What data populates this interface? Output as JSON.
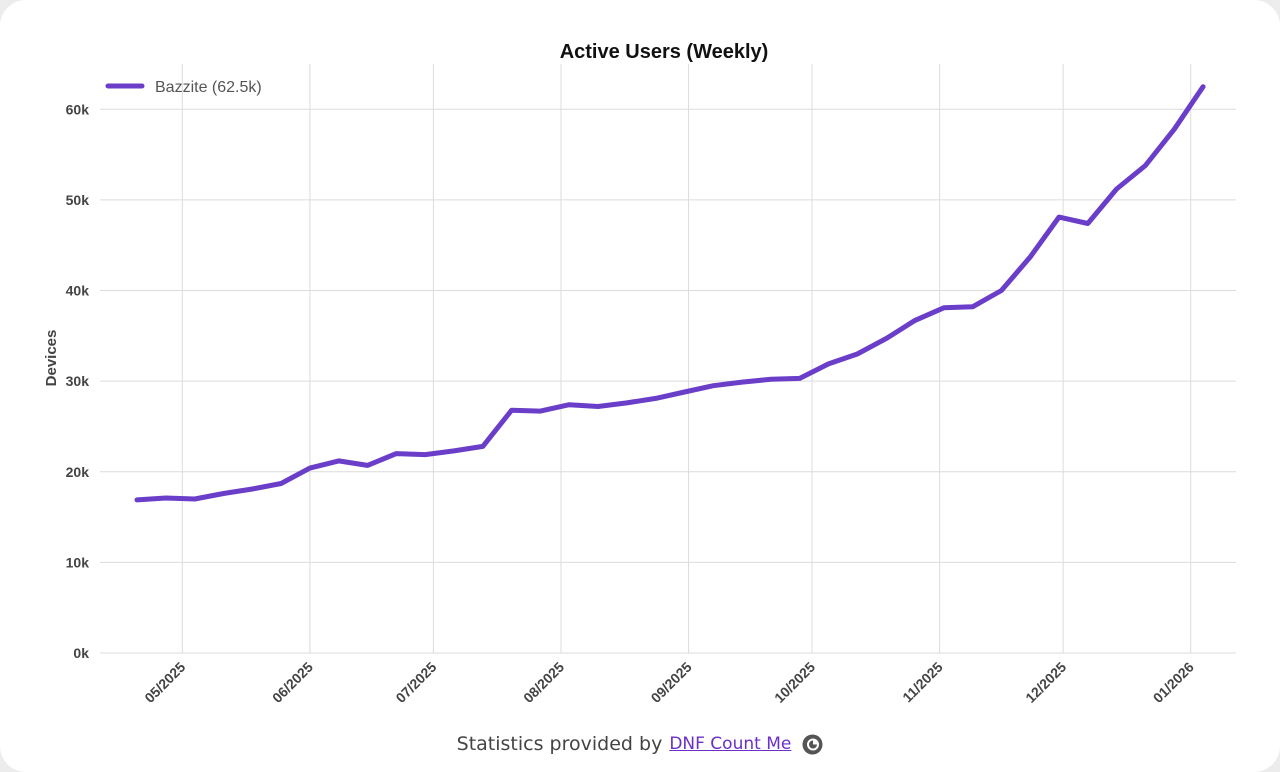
{
  "chart_data": {
    "type": "line",
    "title": "Active Users (Weekly)",
    "xlabel": "",
    "ylabel": "Devices",
    "ylim": [
      0,
      65000
    ],
    "yticks": [
      0,
      10000,
      20000,
      30000,
      40000,
      50000,
      60000
    ],
    "ytick_labels": [
      "0k",
      "10k",
      "20k",
      "30k",
      "40k",
      "50k",
      "60k"
    ],
    "xlim": [
      "2025-04-11",
      "2026-01-12"
    ],
    "xticks": [
      "2025-05-01",
      "2025-06-01",
      "2025-07-01",
      "2025-08-01",
      "2025-09-01",
      "2025-10-01",
      "2025-11-01",
      "2025-12-01",
      "2026-01-01"
    ],
    "xtick_labels": [
      "05/2025",
      "06/2025",
      "07/2025",
      "08/2025",
      "09/2025",
      "10/2025",
      "11/2025",
      "12/2025",
      "01/2026"
    ],
    "grid": true,
    "legend_position": "top-left",
    "series": [
      {
        "name": "Bazzite (62.5k)",
        "color": "#6a3ec8",
        "x": [
          "2025-04-20",
          "2025-04-27",
          "2025-05-04",
          "2025-05-11",
          "2025-05-18",
          "2025-05-25",
          "2025-06-01",
          "2025-06-08",
          "2025-06-15",
          "2025-06-22",
          "2025-06-29",
          "2025-07-06",
          "2025-07-13",
          "2025-07-20",
          "2025-07-27",
          "2025-08-03",
          "2025-08-10",
          "2025-08-17",
          "2025-08-24",
          "2025-08-31",
          "2025-09-07",
          "2025-09-14",
          "2025-09-21",
          "2025-09-28",
          "2025-10-05",
          "2025-10-12",
          "2025-10-19",
          "2025-10-26",
          "2025-11-02",
          "2025-11-09",
          "2025-11-16",
          "2025-11-23",
          "2025-11-30",
          "2025-12-07",
          "2025-12-14",
          "2025-12-21",
          "2025-12-28",
          "2026-01-04"
        ],
        "y": [
          16900,
          17100,
          17000,
          17600,
          18100,
          18700,
          20400,
          21200,
          20700,
          22000,
          21900,
          22300,
          22800,
          26800,
          26700,
          27400,
          27200,
          27600,
          28100,
          28800,
          29500,
          29900,
          30200,
          30300,
          31900,
          33000,
          34700,
          36700,
          38100,
          38200,
          40000,
          43700,
          48100,
          47400,
          51200,
          53800,
          57800,
          62500
        ]
      }
    ]
  },
  "footer": {
    "text": "Statistics provided by",
    "link_text": "DNF Count Me",
    "logo_icon": "chart-pie-icon"
  }
}
